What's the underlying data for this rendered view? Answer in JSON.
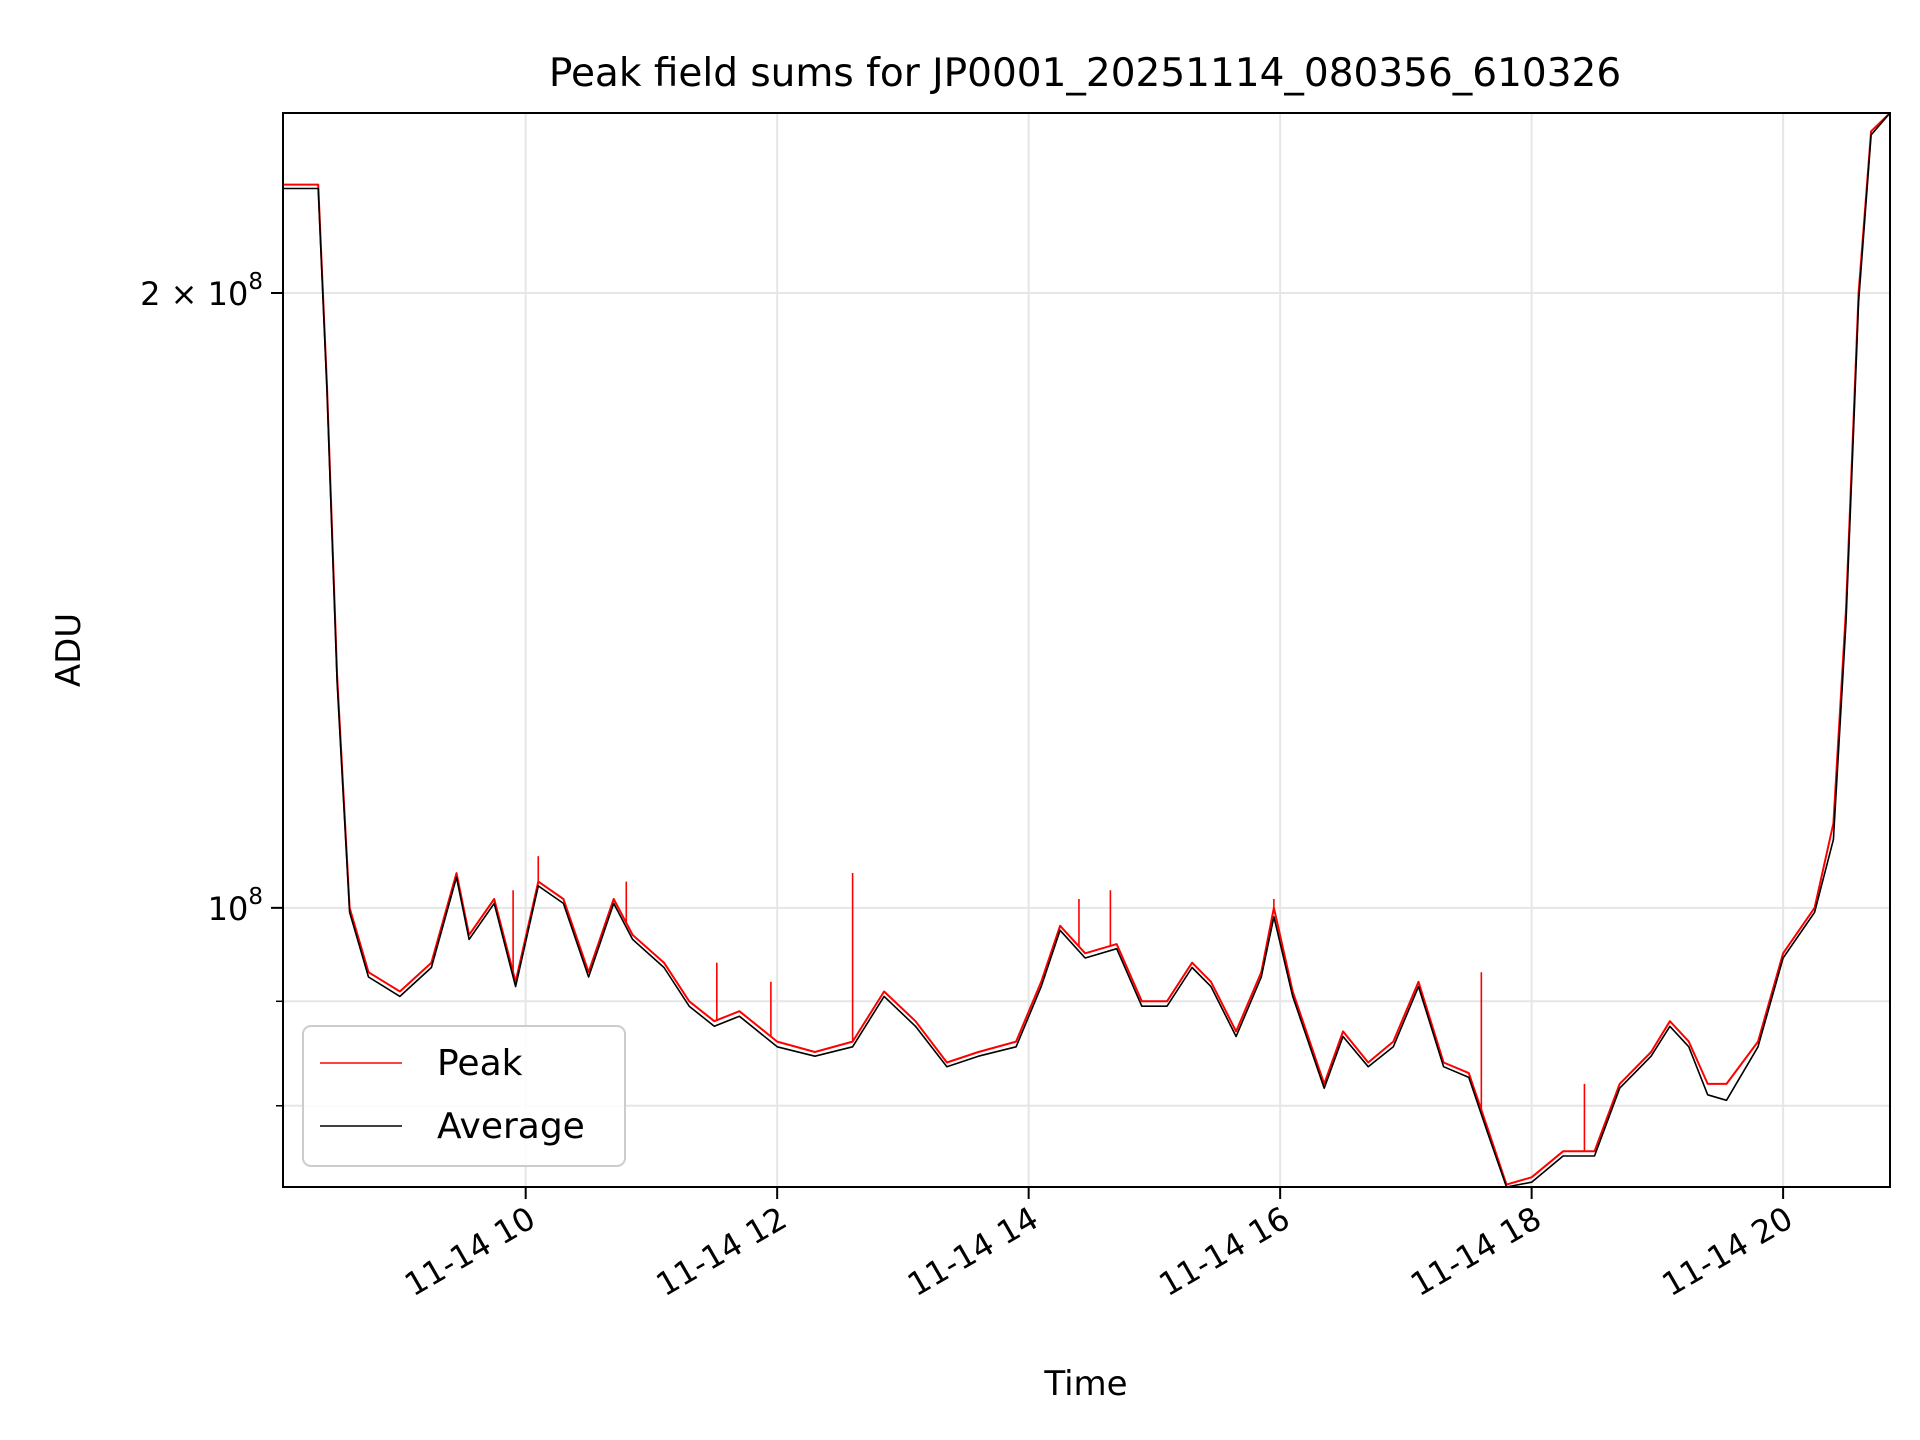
{
  "chart_data": {
    "type": "line",
    "title": "Peak field sums for JP0001_20251114_080356_610326",
    "xlabel": "Time",
    "ylabel": "ADU",
    "y_scale": "log",
    "ylim": [
      73000000,
      245000000
    ],
    "xlim_hours": [
      8.07,
      20.85
    ],
    "x_ticks": [
      {
        "hour": 10,
        "label": "11-14 10"
      },
      {
        "hour": 12,
        "label": "11-14 12"
      },
      {
        "hour": 14,
        "label": "11-14 14"
      },
      {
        "hour": 16,
        "label": "11-14 16"
      },
      {
        "hour": 18,
        "label": "11-14 18"
      },
      {
        "hour": 20,
        "label": "11-14 20"
      }
    ],
    "y_ticks": [
      {
        "value": 100000000,
        "base": "10",
        "exp": "8",
        "label": "10^8"
      },
      {
        "value": 200000000,
        "coef": "2 × ",
        "base": "10",
        "exp": "8",
        "label": "2 × 10^8"
      }
    ],
    "y_minor_ticks": [
      80000000,
      90000000
    ],
    "grid": true,
    "legend_position": "lower-left",
    "series": [
      {
        "name": "Peak",
        "color": "#ff0000",
        "points": [
          [
            8.07,
            226000000
          ],
          [
            8.35,
            226000000
          ],
          [
            8.42,
            180000000
          ],
          [
            8.5,
            130000000
          ],
          [
            8.6,
            100000000
          ],
          [
            8.75,
            93000000
          ],
          [
            9.0,
            91000000
          ],
          [
            9.25,
            94000000
          ],
          [
            9.45,
            104000000
          ],
          [
            9.55,
            97000000
          ],
          [
            9.75,
            101000000
          ],
          [
            9.92,
            92000000
          ],
          [
            10.1,
            103000000
          ],
          [
            10.3,
            101000000
          ],
          [
            10.5,
            93000000
          ],
          [
            10.7,
            101000000
          ],
          [
            10.85,
            97000000
          ],
          [
            11.1,
            94000000
          ],
          [
            11.3,
            90000000
          ],
          [
            11.5,
            88000000
          ],
          [
            11.7,
            89000000
          ],
          [
            12.0,
            86000000
          ],
          [
            12.3,
            85000000
          ],
          [
            12.6,
            86000000
          ],
          [
            12.85,
            91000000
          ],
          [
            13.1,
            88000000
          ],
          [
            13.35,
            84000000
          ],
          [
            13.6,
            85000000
          ],
          [
            13.9,
            86000000
          ],
          [
            14.1,
            92000000
          ],
          [
            14.25,
            98000000
          ],
          [
            14.45,
            95000000
          ],
          [
            14.7,
            96000000
          ],
          [
            14.9,
            90000000
          ],
          [
            15.1,
            90000000
          ],
          [
            15.3,
            94000000
          ],
          [
            15.45,
            92000000
          ],
          [
            15.65,
            87000000
          ],
          [
            15.85,
            93000000
          ],
          [
            15.95,
            100000000
          ],
          [
            16.1,
            91000000
          ],
          [
            16.35,
            82000000
          ],
          [
            16.5,
            87000000
          ],
          [
            16.7,
            84000000
          ],
          [
            16.9,
            86000000
          ],
          [
            17.1,
            92000000
          ],
          [
            17.3,
            84000000
          ],
          [
            17.5,
            83000000
          ],
          [
            17.65,
            78000000
          ],
          [
            17.8,
            73200000
          ],
          [
            18.0,
            73800000
          ],
          [
            18.25,
            76000000
          ],
          [
            18.5,
            76000000
          ],
          [
            18.7,
            82000000
          ],
          [
            18.95,
            85000000
          ],
          [
            19.1,
            88000000
          ],
          [
            19.25,
            86000000
          ],
          [
            19.4,
            82000000
          ],
          [
            19.55,
            82000000
          ],
          [
            19.8,
            86000000
          ],
          [
            20.0,
            95000000
          ],
          [
            20.25,
            100000000
          ],
          [
            20.4,
            110000000
          ],
          [
            20.5,
            140000000
          ],
          [
            20.6,
            200000000
          ],
          [
            20.7,
            240000000
          ],
          [
            20.85,
            245000000
          ]
        ],
        "spikes": [
          [
            9.9,
            102000000
          ],
          [
            10.1,
            106000000
          ],
          [
            10.8,
            103000000
          ],
          [
            11.52,
            94000000
          ],
          [
            11.95,
            92000000
          ],
          [
            12.6,
            104000000
          ],
          [
            14.4,
            101000000
          ],
          [
            14.65,
            102000000
          ],
          [
            15.95,
            101000000
          ],
          [
            17.6,
            93000000
          ],
          [
            18.42,
            82000000
          ]
        ]
      },
      {
        "name": "Average",
        "color": "#000000",
        "points": [
          [
            8.07,
            225000000
          ],
          [
            8.35,
            225000000
          ],
          [
            8.42,
            179000000
          ],
          [
            8.5,
            129000000
          ],
          [
            8.6,
            99500000
          ],
          [
            8.75,
            92500000
          ],
          [
            9.0,
            90500000
          ],
          [
            9.25,
            93500000
          ],
          [
            9.45,
            103500000
          ],
          [
            9.55,
            96500000
          ],
          [
            9.75,
            100500000
          ],
          [
            9.92,
            91500000
          ],
          [
            10.1,
            102500000
          ],
          [
            10.3,
            100500000
          ],
          [
            10.5,
            92500000
          ],
          [
            10.7,
            100500000
          ],
          [
            10.85,
            96500000
          ],
          [
            11.1,
            93500000
          ],
          [
            11.3,
            89500000
          ],
          [
            11.5,
            87500000
          ],
          [
            11.7,
            88500000
          ],
          [
            12.0,
            85500000
          ],
          [
            12.3,
            84600000
          ],
          [
            12.6,
            85500000
          ],
          [
            12.85,
            90500000
          ],
          [
            13.1,
            87500000
          ],
          [
            13.35,
            83600000
          ],
          [
            13.6,
            84600000
          ],
          [
            13.9,
            85500000
          ],
          [
            14.1,
            91500000
          ],
          [
            14.25,
            97500000
          ],
          [
            14.45,
            94500000
          ],
          [
            14.7,
            95500000
          ],
          [
            14.9,
            89500000
          ],
          [
            15.1,
            89500000
          ],
          [
            15.3,
            93500000
          ],
          [
            15.45,
            91500000
          ],
          [
            15.65,
            86500000
          ],
          [
            15.85,
            92500000
          ],
          [
            15.95,
            99000000
          ],
          [
            16.1,
            90500000
          ],
          [
            16.35,
            81600000
          ],
          [
            16.5,
            86500000
          ],
          [
            16.7,
            83600000
          ],
          [
            16.9,
            85500000
          ],
          [
            17.1,
            91500000
          ],
          [
            17.3,
            83600000
          ],
          [
            17.5,
            82600000
          ],
          [
            17.65,
            77600000
          ],
          [
            17.8,
            73000000
          ],
          [
            18.0,
            73400000
          ],
          [
            18.25,
            75600000
          ],
          [
            18.5,
            75600000
          ],
          [
            18.7,
            81600000
          ],
          [
            18.95,
            84600000
          ],
          [
            19.1,
            87500000
          ],
          [
            19.25,
            85500000
          ],
          [
            19.4,
            81000000
          ],
          [
            19.55,
            80500000
          ],
          [
            19.8,
            85500000
          ],
          [
            20.0,
            94500000
          ],
          [
            20.25,
            99500000
          ],
          [
            20.4,
            108000000
          ],
          [
            20.5,
            138000000
          ],
          [
            20.6,
            198000000
          ],
          [
            20.7,
            239000000
          ],
          [
            20.85,
            245000000
          ]
        ],
        "spikes": []
      }
    ]
  }
}
